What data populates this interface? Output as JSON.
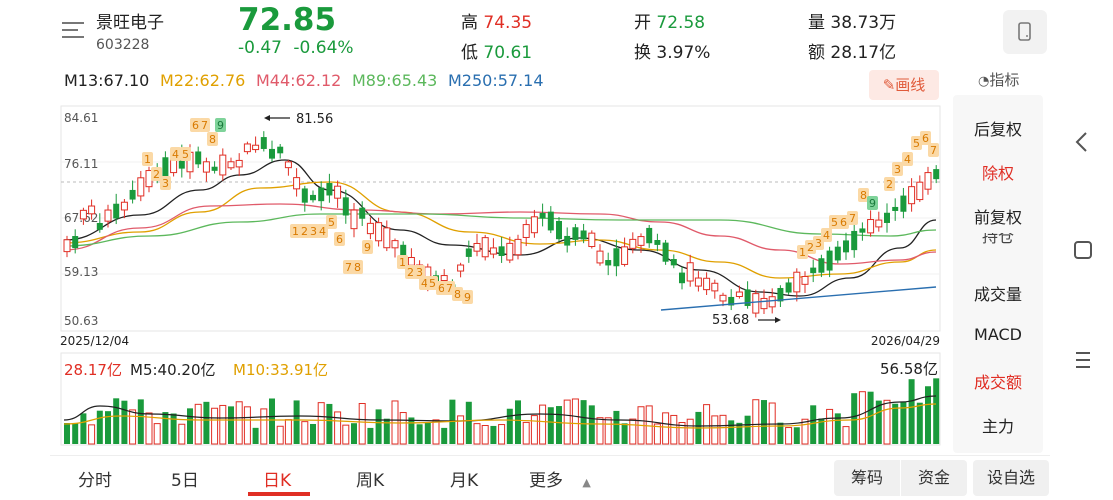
{
  "header": {
    "stock_name": "景旺电子",
    "stock_code": "603228",
    "price": "72.85",
    "change": "-0.47",
    "change_pct": "-0.64%",
    "high_label": "高",
    "high_value": "74.35",
    "low_label": "低",
    "low_value": "70.61",
    "open_label": "开",
    "open_value": "72.58",
    "turnover_label": "换",
    "turnover_value": "3.97%",
    "volume_label": "量",
    "volume_value": "38.73万",
    "amount_label": "额",
    "amount_value": "28.17亿"
  },
  "ma_legend": {
    "m13": "M13:67.10",
    "m22": "M22:62.76",
    "m44": "M44:62.12",
    "m89": "M89:65.43",
    "m250": "M250:57.14"
  },
  "toolbar": {
    "draw_label": "画线",
    "indicator_label": "指标"
  },
  "right_menu": [
    "后复权",
    "除权",
    "前复权",
    "持仓",
    "成交量",
    "MACD",
    "成交额",
    "主力"
  ],
  "kline": {
    "y_ticks": [
      "84.61",
      "76.11",
      "67.62",
      "59.13",
      "50.63"
    ],
    "start_date": "2025/12/04",
    "end_date": "2026/04/29",
    "high_mark": "81.56",
    "low_mark": "53.68"
  },
  "volume_panel": {
    "current": "28.17亿",
    "m5": "M5:40.20亿",
    "m10": "M10:33.91亿",
    "max": "56.58亿"
  },
  "tabs": [
    "分时",
    "5日",
    "日K",
    "周K",
    "月K",
    "更多"
  ],
  "bottom_chips": {
    "chouma": "筹码",
    "zijin": "资金",
    "self_select": "设自选"
  },
  "colors": {
    "up": "#e02e24",
    "down": "#1a9a3c",
    "m13": "#222222",
    "m22": "#e0a000",
    "m44": "#e05a6a",
    "m89": "#5cb85c",
    "m250": "#2a6fb0"
  },
  "icons": {
    "menu": "menu-lines-icon",
    "phone": "phone-icon",
    "back": "chevron-left-icon",
    "square": "square-icon",
    "hamburger": "hamburger-icon"
  }
}
